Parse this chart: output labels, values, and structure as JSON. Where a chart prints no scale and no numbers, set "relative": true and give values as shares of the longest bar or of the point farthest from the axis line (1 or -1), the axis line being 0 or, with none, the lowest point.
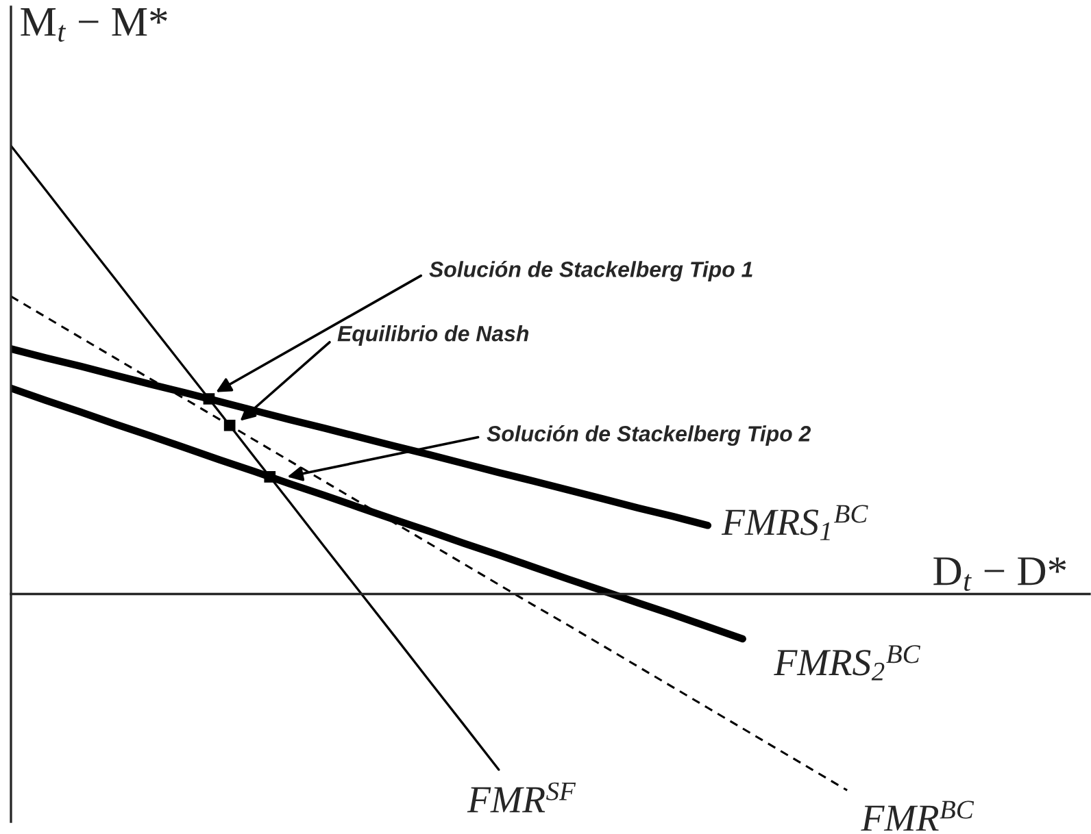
{
  "chart_data": {
    "type": "line",
    "relative": true,
    "legend": false,
    "marker": "none",
    "xlabel": "D$_{t}$ − D*",
    "ylabel": "M$_{t}$ − M*",
    "categories": [
      null,
      null,
      null,
      null,
      null,
      null,
      null,
      null,
      null,
      null,
      null,
      null,
      null,
      null,
      null,
      null,
      null,
      null,
      null,
      null,
      null,
      null,
      null,
      null,
      null
    ],
    "series": [
      {
        "name": "FMR$^{SF}$",
        "color": "#000000",
        "line_style": "solid",
        "values": [
          1.0,
          0.901,
          0.801,
          0.702,
          0.602,
          0.503,
          0.404,
          0.304,
          0.205,
          0.105,
          0.006,
          -0.093,
          -0.193,
          -0.292,
          -0.392,
          null,
          null,
          null,
          null,
          null,
          null,
          null,
          null,
          null,
          null
        ]
      },
      {
        "name": "FMR$^{BC}$",
        "color": "#000000",
        "line_style": "dashed",
        "values": [
          0.664,
          0.618,
          0.572,
          0.526,
          0.48,
          0.435,
          0.389,
          0.343,
          0.297,
          0.251,
          0.205,
          0.159,
          0.113,
          0.067,
          0.021,
          -0.025,
          -0.07,
          -0.116,
          -0.162,
          -0.208,
          -0.254,
          -0.3,
          -0.346,
          -0.392,
          -0.438
        ]
      },
      {
        "name": "FMRS$_{1}$$^{BC}$",
        "color": "#000000",
        "line_style": "solid",
        "values": [
          0.547,
          0.527,
          0.508,
          0.488,
          0.468,
          0.449,
          0.429,
          0.409,
          0.389,
          0.37,
          0.35,
          0.33,
          0.311,
          0.291,
          0.271,
          0.252,
          0.232,
          0.212,
          0.192,
          0.173,
          0.153,
          null,
          null,
          null,
          null
        ]
      },
      {
        "name": "FMRS$_{2}$$^{BC}$",
        "color": "#000000",
        "line_style": "solid",
        "values": [
          0.459,
          0.432,
          0.406,
          0.379,
          0.353,
          0.326,
          0.299,
          0.273,
          0.246,
          0.22,
          0.193,
          0.166,
          0.14,
          0.113,
          0.087,
          0.06,
          0.033,
          0.007,
          -0.02,
          -0.046,
          -0.073,
          -0.1,
          null,
          null,
          null
        ]
      }
    ],
    "annotations": [
      "Solución de Stackelberg Tipo 1",
      "Equilibrio de Nash",
      "Solución de Stackelberg Tipo 2"
    ]
  }
}
